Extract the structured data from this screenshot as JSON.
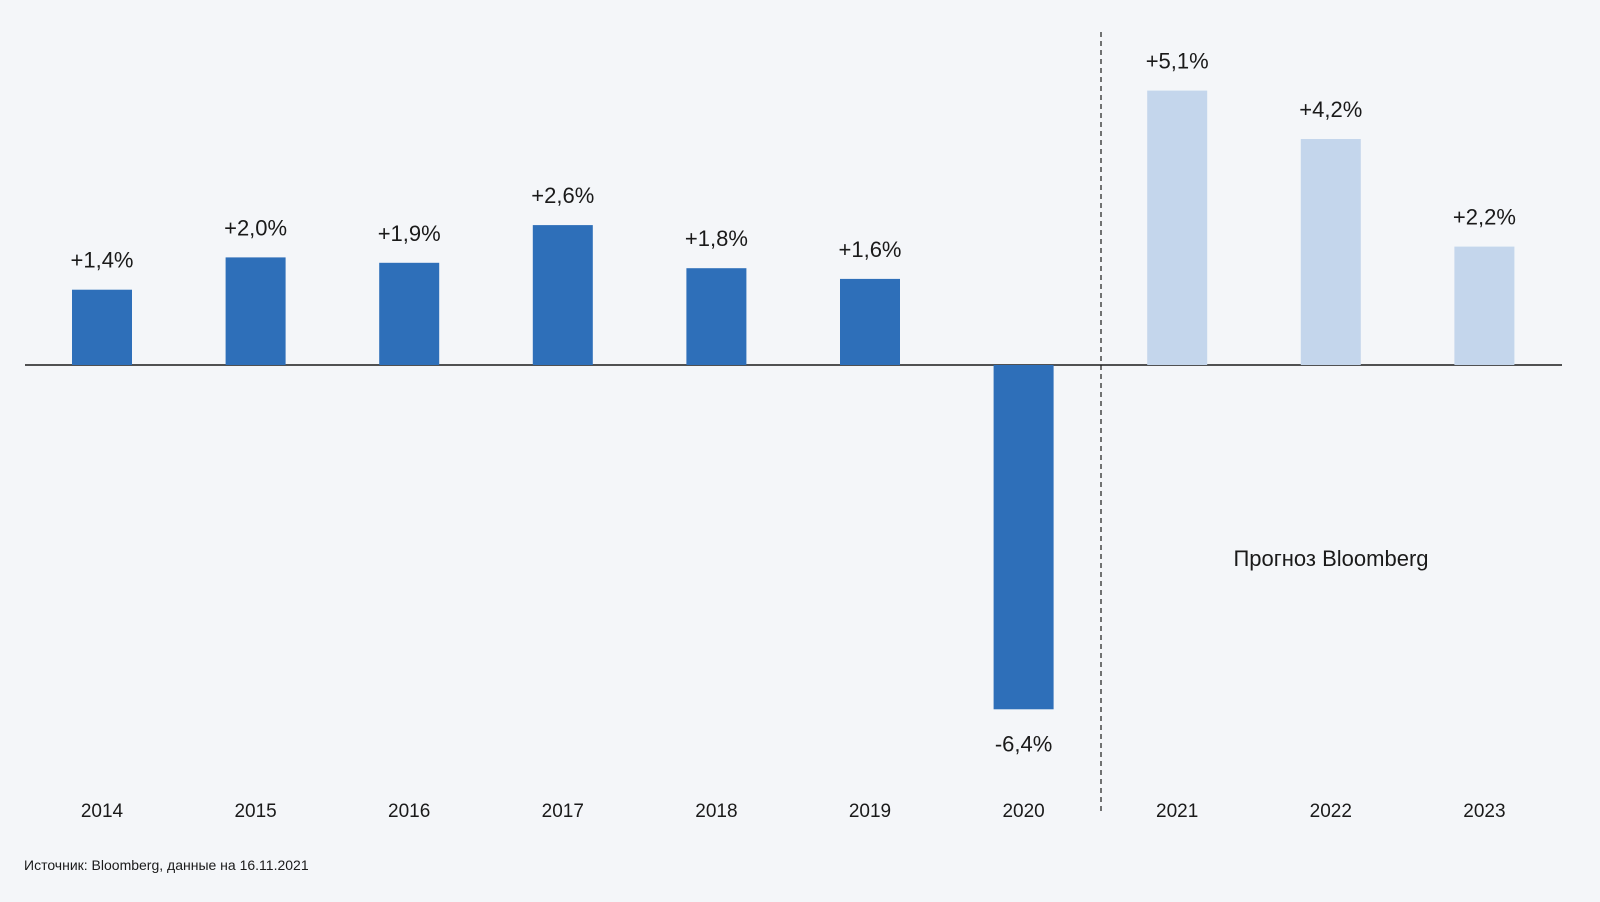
{
  "chart_data": {
    "type": "bar",
    "categories": [
      "2014",
      "2015",
      "2016",
      "2017",
      "2018",
      "2019",
      "2020",
      "2021",
      "2022",
      "2023"
    ],
    "values": [
      1.4,
      2.0,
      1.9,
      2.6,
      1.8,
      1.6,
      -6.4,
      5.1,
      4.2,
      2.2
    ],
    "value_labels": [
      "+1,4%",
      "+2,0%",
      "+1,9%",
      "+2,6%",
      "+1,8%",
      "+1,6%",
      "-6,4%",
      "+5,1%",
      "+4,2%",
      "+2,2%"
    ],
    "forecast": [
      false,
      false,
      false,
      false,
      false,
      false,
      false,
      true,
      true,
      true
    ],
    "forecast_label": "Прогноз Bloomberg",
    "title": "",
    "xlabel": "",
    "ylabel": "",
    "ylim": [
      -6.4,
      5.1
    ],
    "grid": false,
    "legend": "none",
    "colors": {
      "actual": "#2e6fb9",
      "forecast": "#c4d6ec",
      "axis": "#1a1a1a",
      "background": "#f4f6f9"
    }
  },
  "source_note": "Источник: Bloomberg, данные на 16.11.2021"
}
